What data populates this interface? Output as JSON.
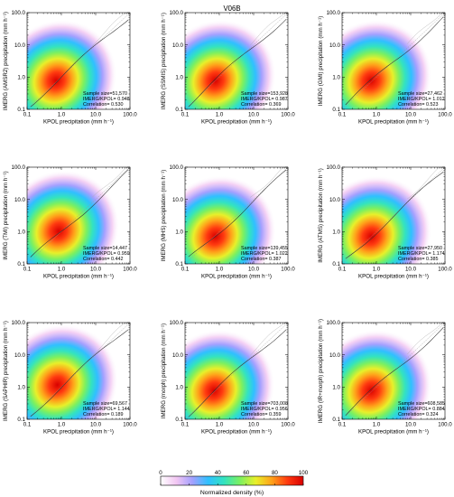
{
  "figure_title": "V06B",
  "colorbar": {
    "label": "Normalized density (%)",
    "ticks": [
      "0",
      "20",
      "40",
      "60",
      "80",
      "100"
    ],
    "colors": [
      "#ffffff",
      "#f2c6f2",
      "#a4a0ff",
      "#2fc0ff",
      "#33e3c0",
      "#7cf060",
      "#e8f02a",
      "#ffa21a",
      "#ff3a10",
      "#d80000"
    ]
  },
  "chart_data": [
    {
      "type": "heatmap",
      "xlabel": "KPOL precipitation (mm h⁻¹)",
      "ylabel": "IMERG (AMSR2) precipitation (mm h⁻¹)",
      "x_scale": "log",
      "y_scale": "log",
      "xlim": [
        0.1,
        100
      ],
      "ylim": [
        0.1,
        100
      ],
      "x_ticks": [
        "0.1",
        "1.0",
        "10.0",
        "100.0"
      ],
      "y_ticks": [
        "0.1",
        "1.0",
        "10.0",
        "100.0"
      ],
      "stats": [
        "Sample size=51,570",
        "IMERG/KPOL= 0.948",
        "Correlation= 0.530"
      ],
      "density_peak": {
        "x": 0.55,
        "y": 0.6
      }
    },
    {
      "type": "heatmap",
      "xlabel": "KPOL precipitation (mm h⁻¹)",
      "ylabel": "IMERG (SSMIS) precipitation (mm h⁻¹)",
      "x_scale": "log",
      "y_scale": "log",
      "xlim": [
        0.1,
        100
      ],
      "ylim": [
        0.1,
        100
      ],
      "x_ticks": [
        "0.1",
        "1.0",
        "10.0",
        "100.0"
      ],
      "y_ticks": [
        "0.1",
        "1.0",
        "10.0",
        "100.0"
      ],
      "stats": [
        "Sample size=153,928",
        "IMERG/KPOL= 0.987",
        "Correlation= 0.369"
      ],
      "density_peak": {
        "x": 0.6,
        "y": 0.6
      }
    },
    {
      "type": "heatmap",
      "xlabel": "KPOL precipitation (mm h⁻¹)",
      "ylabel": "IMERG (GMI) precipitation (mm h⁻¹)",
      "x_scale": "log",
      "y_scale": "log",
      "xlim": [
        0.1,
        100
      ],
      "ylim": [
        0.1,
        100
      ],
      "x_ticks": [
        "0.1",
        "1.0",
        "10.0",
        "100.0"
      ],
      "y_ticks": [
        "0.1",
        "1.0",
        "10.0",
        "100.0"
      ],
      "stats": [
        "Sample size=27,462",
        "IMERG/KPOL= 1.012",
        "Correlation= 0.523"
      ],
      "density_peak": {
        "x": 0.55,
        "y": 0.6
      }
    },
    {
      "type": "heatmap",
      "xlabel": "KPOL precipitation (mm h⁻¹)",
      "ylabel": "IMERG (TMI) precipitation (mm h⁻¹)",
      "x_scale": "log",
      "y_scale": "log",
      "xlim": [
        0.1,
        100
      ],
      "ylim": [
        0.1,
        100
      ],
      "x_ticks": [
        "0.1",
        "1.0",
        "10.0",
        "100.0"
      ],
      "y_ticks": [
        "0.1",
        "1.0",
        "10.0",
        "100.0"
      ],
      "stats": [
        "Sample size=14,447",
        "IMERG/KPOL= 0.959",
        "Correlation= 0.442"
      ],
      "density_peak": {
        "x": 0.65,
        "y": 0.8
      }
    },
    {
      "type": "heatmap",
      "xlabel": "KPOL precipitation (mm h⁻¹)",
      "ylabel": "IMERG (MHS) precipitation (mm h⁻¹)",
      "x_scale": "log",
      "y_scale": "log",
      "xlim": [
        0.1,
        100
      ],
      "ylim": [
        0.1,
        100
      ],
      "x_ticks": [
        "0.1",
        "1.0",
        "10.0",
        "100.0"
      ],
      "y_ticks": [
        "0.1",
        "1.0",
        "10.0",
        "100.0"
      ],
      "stats": [
        "Sample size=139,455",
        "IMERG/KPOL= 1.022",
        "Correlation= 0.387"
      ],
      "density_peak": {
        "x": 0.6,
        "y": 0.55
      }
    },
    {
      "type": "heatmap",
      "xlabel": "KPOL precipitation (mm h⁻¹)",
      "ylabel": "IMERG (ATMS) precipitation (mm h⁻¹)",
      "x_scale": "log",
      "y_scale": "log",
      "xlim": [
        0.1,
        100
      ],
      "ylim": [
        0.1,
        100
      ],
      "x_ticks": [
        "0.1",
        "1.0",
        "10.0",
        "100.0"
      ],
      "y_ticks": [
        "0.1",
        "1.0",
        "10.0",
        "100.0"
      ],
      "stats": [
        "Sample size=27,950",
        "IMERG/KPOL= 1.174",
        "Correlation= 0.385"
      ],
      "density_peak": {
        "x": 0.55,
        "y": 0.55
      }
    },
    {
      "type": "heatmap",
      "xlabel": "KPOL precipitation (mm h⁻¹)",
      "ylabel": "IMERG (SAPHIR) precipitation (mm h⁻¹)",
      "x_scale": "log",
      "y_scale": "log",
      "xlim": [
        0.1,
        100
      ],
      "ylim": [
        0.1,
        100
      ],
      "x_ticks": [
        "0.1",
        "1.0",
        "10.0",
        "100.0"
      ],
      "y_ticks": [
        "0.1",
        "1.0",
        "10.0",
        "100.0"
      ],
      "stats": [
        "Sample size=69,567",
        "IMERG/KPOL= 1.144",
        "Correlation= 0.189"
      ],
      "density_peak": {
        "x": 0.6,
        "y": 0.9
      }
    },
    {
      "type": "heatmap",
      "xlabel": "KPOL precipitation (mm h⁻¹)",
      "ylabel": "IMERG (morph) precipitation (mm h⁻¹)",
      "x_scale": "log",
      "y_scale": "log",
      "xlim": [
        0.1,
        100
      ],
      "ylim": [
        0.1,
        100
      ],
      "x_ticks": [
        "0.1",
        "1.0",
        "10.0",
        "100.0"
      ],
      "y_ticks": [
        "0.1",
        "1.0",
        "10.0",
        "100.0"
      ],
      "stats": [
        "Sample size=703,008",
        "IMERG/KPOL= 0.956",
        "Correlation= 0.359"
      ],
      "density_peak": {
        "x": 0.55,
        "y": 0.6
      }
    },
    {
      "type": "heatmap",
      "xlabel": "KPOL precipitation (mm h⁻¹)",
      "ylabel": "IMERG (IR+morph) precipitation (mm h⁻¹)",
      "x_scale": "log",
      "y_scale": "log",
      "xlim": [
        0.1,
        100
      ],
      "ylim": [
        0.1,
        100
      ],
      "x_ticks": [
        "0.1",
        "1.0",
        "10.0",
        "100.0"
      ],
      "y_ticks": [
        "0.1",
        "1.0",
        "10.0",
        "100.0"
      ],
      "stats": [
        "Sample size=608,585",
        "IMERG/KPOL= 0.884",
        "Correlation= 0.324"
      ],
      "density_peak": {
        "x": 0.55,
        "y": 0.6
      }
    }
  ]
}
